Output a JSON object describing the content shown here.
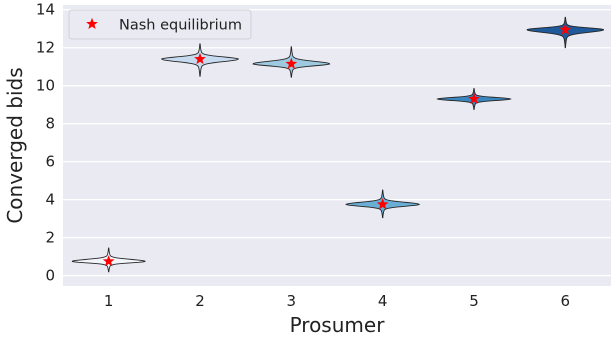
{
  "chart_data": {
    "type": "violin",
    "xlabel": "Prosumer",
    "ylabel": "Converged bids",
    "categories": [
      "1",
      "2",
      "3",
      "4",
      "5",
      "6"
    ],
    "ylim": [
      -0.55,
      14.25
    ],
    "yticks": [
      0,
      2,
      4,
      6,
      8,
      10,
      12,
      14
    ],
    "grid": true,
    "legend": {
      "position": "top-left",
      "entries": [
        "Nash equilibrium"
      ]
    },
    "series": [
      {
        "type": "violin",
        "distributions": [
          {
            "category": "1",
            "center": 0.75,
            "min": 0.2,
            "max": 1.45,
            "half_width": 0.4,
            "color": "#f2f6fb"
          },
          {
            "category": "2",
            "center": 11.4,
            "min": 10.5,
            "max": 12.2,
            "half_width": 0.42,
            "color": "#c6dbef"
          },
          {
            "category": "3",
            "center": 11.15,
            "min": 10.45,
            "max": 12.05,
            "half_width": 0.42,
            "color": "#9ecae1"
          },
          {
            "category": "4",
            "center": 3.75,
            "min": 3.05,
            "max": 4.5,
            "half_width": 0.4,
            "color": "#6aaed6"
          },
          {
            "category": "5",
            "center": 9.3,
            "min": 8.75,
            "max": 9.85,
            "half_width": 0.4,
            "color": "#3a87c0"
          },
          {
            "category": "6",
            "center": 12.95,
            "min": 12.0,
            "max": 13.6,
            "half_width": 0.42,
            "color": "#1f5a9a"
          }
        ]
      },
      {
        "name": "Nash equilibrium",
        "type": "scatter",
        "marker": "star",
        "color": "#ff0000",
        "x": [
          "1",
          "2",
          "3",
          "4",
          "5",
          "6"
        ],
        "y": [
          0.75,
          11.4,
          11.15,
          3.75,
          9.3,
          12.95
        ]
      }
    ],
    "colors": {
      "background": "#eaeaf2",
      "grid": "#ffffff",
      "outline": "#262626"
    }
  }
}
